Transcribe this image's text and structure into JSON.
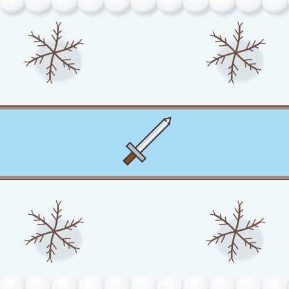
{
  "scene": {
    "background_color": "#f1f8fc",
    "snow_border_color": "#ffffff",
    "river_color": "#abdcf6",
    "river_bank_color": "#8a6b5c",
    "bramble_color": "#6b4f45"
  },
  "tiles": [
    {
      "name": "bramble-tile-top-left",
      "icon": "bramble-icon"
    },
    {
      "name": "bramble-tile-top-right",
      "icon": "bramble-icon"
    },
    {
      "name": "bramble-tile-bottom-left",
      "icon": "bramble-icon"
    },
    {
      "name": "bramble-tile-bottom-right",
      "icon": "bramble-icon"
    }
  ],
  "unit": {
    "name": "sword-piece",
    "icon": "sword-icon"
  }
}
